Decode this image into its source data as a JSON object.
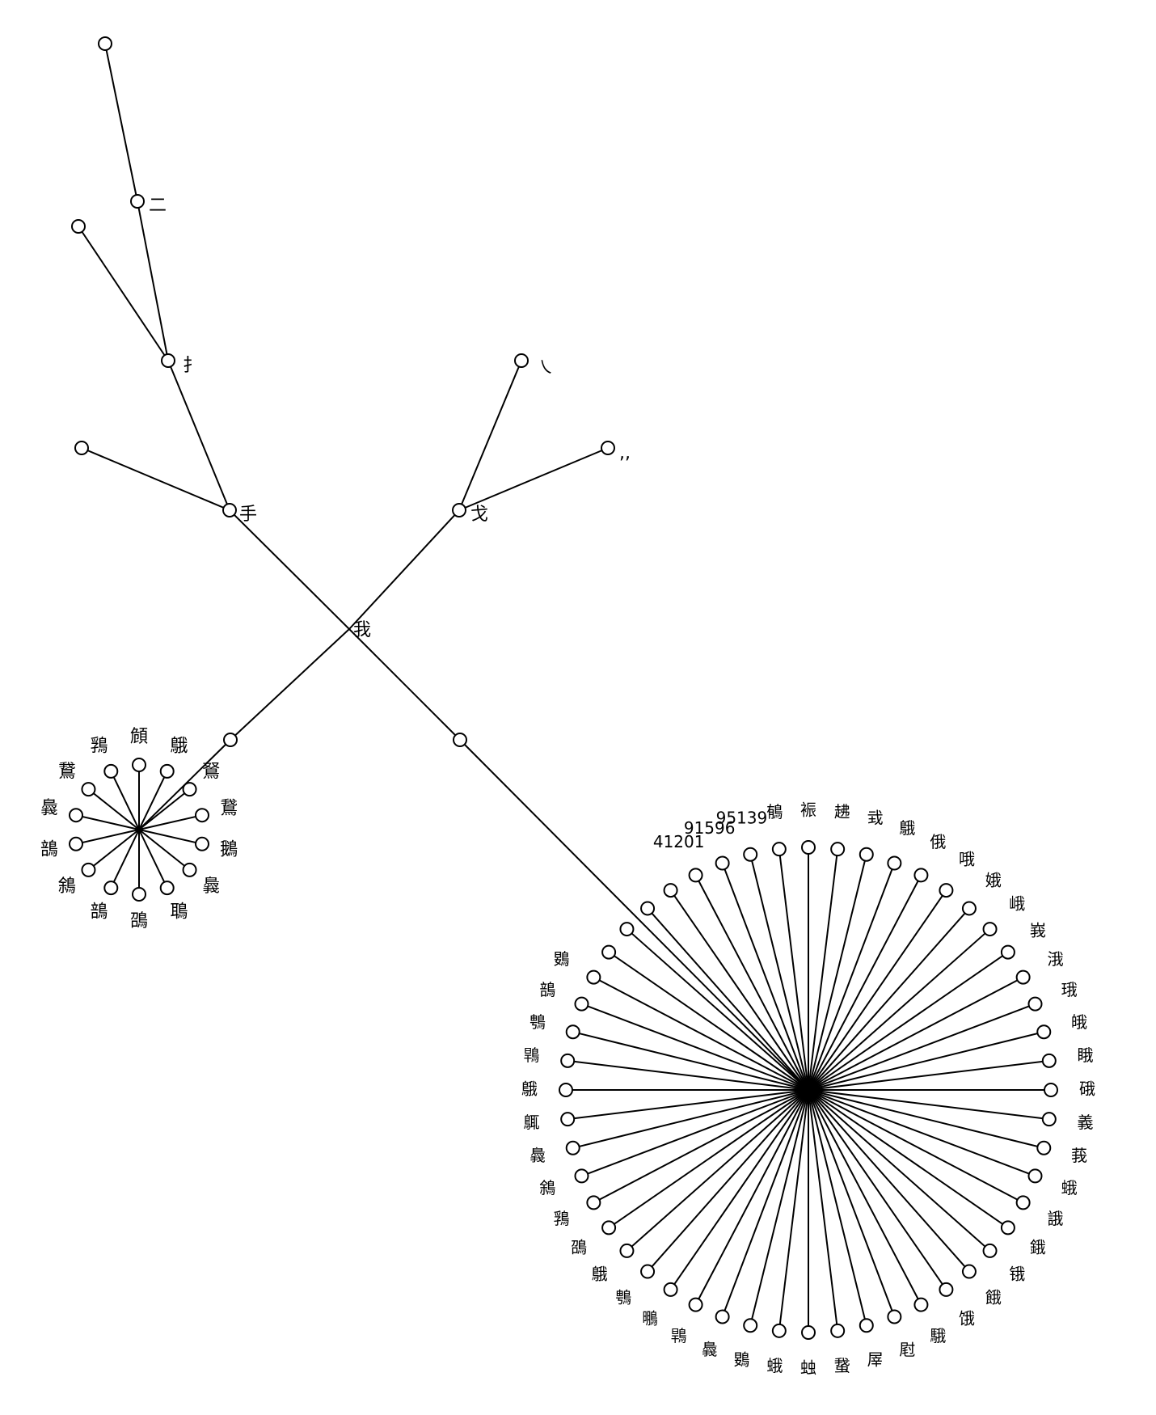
{
  "tree": {
    "root": {
      "label": "我"
    },
    "upper_left": [
      {
        "id": "shou",
        "label": "手"
      },
      {
        "id": "shou_leaf",
        "label": ""
      },
      {
        "id": "ti",
        "label": "扌"
      },
      {
        "id": "ti_leaf",
        "label": ""
      },
      {
        "id": "er",
        "label": "二"
      },
      {
        "id": "top_leaf",
        "label": ""
      }
    ],
    "upper_right": [
      {
        "id": "ge",
        "label": "戈"
      },
      {
        "id": "ge_leaf1",
        "label": "㇏"
      },
      {
        "id": "ge_leaf2",
        "label": ",,"
      }
    ],
    "left_cluster": {
      "label": "",
      "leaves": [
        "頠",
        "䳘",
        "鴑",
        "鵞",
        "鵝",
        "䳗",
        "鵈",
        "䳂",
        "䳝",
        "䳜",
        "䳝",
        "䳗",
        "鵞",
        "䳕"
      ]
    },
    "right_cluster": {
      "label": "",
      "leaves": [
        "裖",
        "䞞",
        "㦱",
        "䳘",
        "俄",
        "哦",
        "娥",
        "峨",
        "峩",
        "涐",
        "珴",
        "皒",
        "睋",
        "硪",
        "義",
        "莪",
        "蛾",
        "誐",
        "鋨",
        "锇",
        "餓",
        "饿",
        "騀",
        "屗",
        "屖",
        "䖸",
        "䖵",
        "蛾",
        "䳛",
        "䳗",
        "䳚",
        "䳟",
        "䳙",
        "䳘",
        "䳂",
        "䳕",
        "䳜",
        "䳗",
        "䳖",
        "䳘",
        "䳚",
        "䳙",
        "䳝",
        "䳛",
        "",
        "",
        "",
        "",
        "41201",
        "91596",
        "95139",
        "䳑"
      ]
    }
  }
}
